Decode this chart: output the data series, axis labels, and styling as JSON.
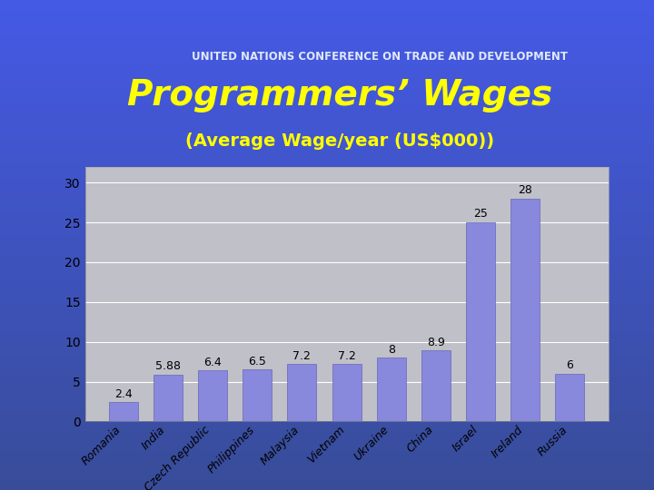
{
  "title": "Programmers’ Wages",
  "subtitle": "(Average Wage/year (US$000))",
  "categories": [
    "Romania",
    "India",
    "Czech Republic",
    "Philippines",
    "Malaysia",
    "Vietnam",
    "Ukraine",
    "China",
    "Israel",
    "Ireland",
    "Russia"
  ],
  "values": [
    2.4,
    5.88,
    6.4,
    6.5,
    7.2,
    7.2,
    8,
    8.9,
    25,
    28,
    6
  ],
  "value_labels": [
    "2.4",
    "5.88",
    "6.4",
    "6.5",
    "7.2",
    "7.2",
    "8",
    "8.9",
    "25",
    "28",
    "6"
  ],
  "bar_color": "#8888dd",
  "bar_edge_color": "#6666bb",
  "plot_bg_color": "#c0c0c8",
  "chart_panel_bg": "#ffffff",
  "fig_bg_top": "#3a4f9a",
  "fig_bg_bottom": "#1a2a8a",
  "header_stripe_color": "#7080b0",
  "title_color": "#ffff00",
  "subtitle_color": "#ffff00",
  "yticks": [
    0,
    5,
    10,
    15,
    20,
    25,
    30
  ],
  "ylim": [
    0,
    32
  ],
  "title_fontsize": 28,
  "subtitle_fontsize": 14,
  "value_label_fontsize": 9,
  "tick_label_fontsize": 9,
  "ytick_fontsize": 10,
  "header_text": "UNITED NATIONS CONFERENCE ON TRADE AND DEVELOPMENT",
  "header_color": "#e0e8f8",
  "header_fontsize": 8.5
}
